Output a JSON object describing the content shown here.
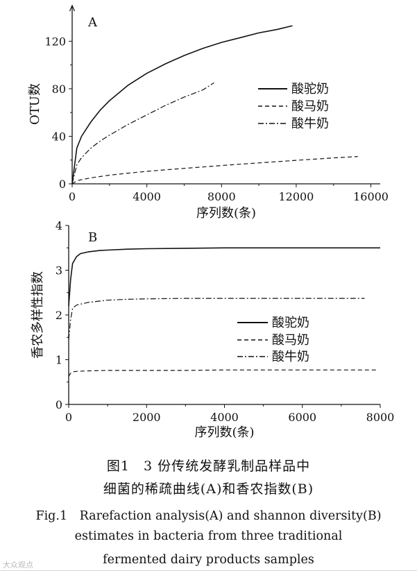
{
  "chart_data": [
    {
      "type": "line",
      "panel_label": "A",
      "title": "",
      "xlabel": "序列数(条)",
      "ylabel": "OTU数",
      "xlim": [
        0,
        16500
      ],
      "ylim": [
        0,
        150
      ],
      "xticks": [
        0,
        4000,
        8000,
        12000,
        16000
      ],
      "yticks": [
        0,
        40,
        80,
        120
      ],
      "xtick_labels": [
        "0",
        "4000",
        "8000",
        "12000",
        "16000"
      ],
      "ytick_labels": [
        "0",
        "40",
        "80",
        "120"
      ],
      "legend": [
        "酸驼奶",
        "酸马奶",
        "酸牛奶"
      ],
      "legend_position": "right",
      "grid": false,
      "series": [
        {
          "name": "酸驼奶",
          "style": "solid",
          "x": [
            0,
            250,
            500,
            1000,
            1500,
            2000,
            3000,
            4000,
            5000,
            6000,
            7000,
            8000,
            9000,
            10000,
            11000,
            11800
          ],
          "y": [
            0,
            30,
            40,
            52,
            62,
            70,
            83,
            93,
            101,
            108,
            114,
            119,
            123,
            127,
            130,
            133
          ]
        },
        {
          "name": "酸马奶",
          "style": "dashed",
          "x": [
            0,
            250,
            500,
            1000,
            2000,
            3000,
            4000,
            5000,
            6000,
            7000,
            8000,
            9000,
            10000,
            11000,
            12000,
            13000,
            14000,
            15300
          ],
          "y": [
            0,
            2.5,
            3.5,
            5,
            7.3,
            9,
            10.5,
            11.8,
            13,
            14.2,
            15.4,
            16.5,
            17.6,
            18.7,
            19.8,
            20.8,
            21.8,
            23
          ]
        },
        {
          "name": "酸牛奶",
          "style": "dashdot",
          "x": [
            0,
            250,
            500,
            1000,
            1500,
            2000,
            3000,
            4000,
            5000,
            6000,
            7000,
            7600
          ],
          "y": [
            0,
            16,
            22,
            30,
            36,
            41,
            50,
            58,
            66,
            73,
            79,
            85
          ]
        }
      ]
    },
    {
      "type": "line",
      "panel_label": "B",
      "title": "",
      "xlabel": "序列数(条)",
      "ylabel": "香农多样性指数",
      "xlim": [
        0,
        8000
      ],
      "ylim": [
        0,
        4
      ],
      "xticks": [
        0,
        2000,
        4000,
        6000,
        8000
      ],
      "yticks": [
        0,
        1,
        2,
        3,
        4
      ],
      "xtick_labels": [
        "0",
        "2000",
        "4000",
        "6000",
        "8000"
      ],
      "ytick_labels": [
        "0",
        "1",
        "2",
        "3",
        "4"
      ],
      "legend": [
        "酸驼奶",
        "酸马奶",
        "酸牛奶"
      ],
      "legend_position": "right",
      "grid": false,
      "series": [
        {
          "name": "酸驼奶",
          "style": "solid",
          "x": [
            0,
            50,
            100,
            200,
            300,
            500,
            800,
            1000,
            1500,
            2000,
            3000,
            4000,
            5000,
            6000,
            7000,
            8000
          ],
          "y": [
            2.2,
            2.8,
            3.15,
            3.3,
            3.37,
            3.41,
            3.44,
            3.45,
            3.47,
            3.48,
            3.49,
            3.5,
            3.5,
            3.5,
            3.5,
            3.5
          ]
        },
        {
          "name": "酸马奶",
          "style": "dashed",
          "x": [
            0,
            50,
            100,
            200,
            500,
            1000,
            2000,
            3000,
            4000,
            5000,
            6000,
            7000,
            7900
          ],
          "y": [
            0.63,
            0.7,
            0.73,
            0.74,
            0.75,
            0.76,
            0.76,
            0.76,
            0.77,
            0.77,
            0.77,
            0.77,
            0.77
          ]
        },
        {
          "name": "酸牛奶",
          "style": "dashdot",
          "x": [
            0,
            50,
            100,
            200,
            500,
            1000,
            1500,
            2000,
            3000,
            4000,
            5000,
            6000,
            7000,
            7600
          ],
          "y": [
            1.45,
            1.9,
            2.15,
            2.22,
            2.28,
            2.33,
            2.35,
            2.36,
            2.37,
            2.37,
            2.37,
            2.37,
            2.37,
            2.37
          ]
        }
      ]
    }
  ],
  "caption": {
    "cn_line1": "图1　3 份传统发酵乳制品样品中",
    "cn_line2": "细菌的稀疏曲线(A)和香农指数(B)",
    "en_line1": "Fig.1　Rarefaction analysis(A) and shannon diversity(B)",
    "en_line2": "estimates in bacteria from three traditional",
    "en_line3": "fermented dairy products samples"
  },
  "watermark": "大众观点"
}
